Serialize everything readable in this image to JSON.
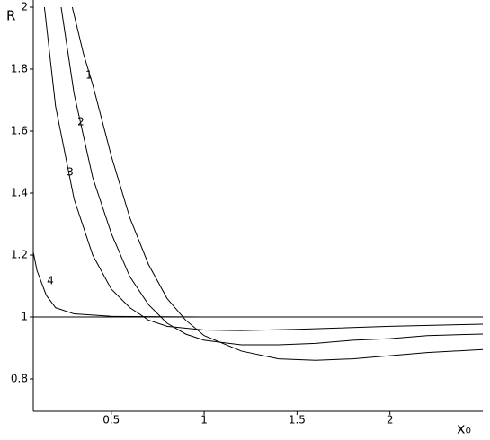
{
  "chart_data": {
    "type": "line",
    "ylabel": "R",
    "xlabel": "x₀",
    "xlim": [
      0.08,
      2.5
    ],
    "ylim": [
      0.7,
      2
    ],
    "xticks": [
      0.5,
      1,
      1.5,
      2
    ],
    "yticks": [
      0.8,
      1,
      1.2,
      1.4,
      1.6,
      1.8,
      2
    ],
    "hline": 1,
    "series": [
      {
        "name": "1",
        "color": "#000000",
        "x": [
          0.29,
          0.35,
          0.4,
          0.5,
          0.6,
          0.7,
          0.8,
          0.9,
          1.0,
          1.2,
          1.4,
          1.6,
          1.8,
          2.0,
          2.2,
          2.5
        ],
        "values": [
          2,
          1.85,
          1.75,
          1.52,
          1.32,
          1.17,
          1.06,
          0.99,
          0.94,
          0.89,
          0.865,
          0.86,
          0.865,
          0.875,
          0.885,
          0.895
        ]
      },
      {
        "name": "2",
        "color": "#000000",
        "x": [
          0.23,
          0.3,
          0.4,
          0.5,
          0.6,
          0.7,
          0.8,
          0.9,
          1.0,
          1.2,
          1.4,
          1.6,
          1.8,
          2.0,
          2.2,
          2.5
        ],
        "values": [
          2,
          1.72,
          1.45,
          1.27,
          1.13,
          1.04,
          0.98,
          0.945,
          0.925,
          0.91,
          0.91,
          0.915,
          0.925,
          0.93,
          0.94,
          0.945
        ]
      },
      {
        "name": "3",
        "color": "#000000",
        "x": [
          0.14,
          0.2,
          0.3,
          0.4,
          0.5,
          0.6,
          0.7,
          0.8,
          1.0,
          1.2,
          1.5,
          2.0,
          2.5
        ],
        "values": [
          2,
          1.68,
          1.38,
          1.2,
          1.09,
          1.03,
          0.99,
          0.97,
          0.958,
          0.956,
          0.96,
          0.97,
          0.977
        ]
      },
      {
        "name": "4",
        "color": "#000000",
        "x": [
          0.08,
          0.1,
          0.15,
          0.2,
          0.3,
          0.5,
          1.0,
          2.5
        ],
        "values": [
          1.21,
          1.15,
          1.07,
          1.03,
          1.01,
          1.002,
          1,
          1
        ]
      }
    ]
  }
}
